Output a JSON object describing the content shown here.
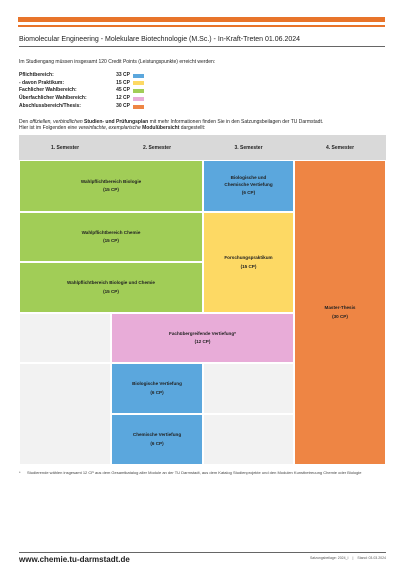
{
  "header": {
    "title": "Biomolecular Engineering - Molekulare Biotechnologie (M.Sc.) - In-Kraft-Treten 01.06.2024"
  },
  "intro": "Im Studiengang müssen insgesamt 120 Credit Points (Leistungspunkte) erreicht werden:",
  "summary": [
    {
      "label": "Pflichtbereich:",
      "value": "33 CP",
      "color": "#5ba7dd"
    },
    {
      "label": "- davon Praktikum:",
      "value": "15 CP",
      "color": "#fdd964"
    },
    {
      "label": "Fachlicher Wahlbereich:",
      "value": "45 CP",
      "color": "#a1cd57"
    },
    {
      "label": "Überfachlicher Wahlbereich:",
      "value": "12 CP",
      "color": "#e8acd8"
    },
    {
      "label": "Abschlussbereich/Thesis:",
      "value": "30 CP",
      "color": "#ee8544"
    }
  ],
  "plan_text": {
    "line1_a": "Den ",
    "line1_b": "offiziellen, verbindlichen",
    "line1_c": " Studien- und Prüfungsplan",
    "line1_d": " mit mehr Informationen finden Sie in den Satzungsbeilagen der TU Darmstadt.",
    "line2_a": "Hier ist im Folgenden eine ",
    "line2_b": "vereinfachte, exemplarische",
    "line2_c": " Modulübersicht",
    "line2_d": " dargestellt:"
  },
  "semesters": [
    "1. Semester",
    "2. Semester",
    "3. Semester",
    "4. Semester"
  ],
  "modules": {
    "wahl_bio": {
      "name": "Wahlpflichtbereich Biologie",
      "cp": "(15 CP)",
      "color": "#a1cd57"
    },
    "wahl_chem": {
      "name": "Wahlpflichtbereich Chemie",
      "cp": "(15 CP)",
      "color": "#a1cd57"
    },
    "wahl_biochem": {
      "name": "Wahlpflichtbereich Biologie und Chemie",
      "cp": "(15 CP)",
      "color": "#a1cd57"
    },
    "bio_chem_vert": {
      "name": "Biologische und Chemische Vertiefung",
      "cp": "(6 CP)",
      "color": "#5ba7dd"
    },
    "forschung": {
      "name": "Forschungspraktikum",
      "cp": "(15 CP)",
      "color": "#fdd964"
    },
    "thesis": {
      "name": "Master-Thesis",
      "cp": "(30 CP)",
      "color": "#ee8544"
    },
    "fachueber": {
      "name": "Fachübergreifende Vertiefung*",
      "cp": "(12 CP)",
      "color": "#e8acd8"
    },
    "bio_vert": {
      "name": "Biologische Vertiefung",
      "cp": "(6 CP)",
      "color": "#5ba7dd"
    },
    "chem_vert": {
      "name": "Chemische Vertiefung",
      "cp": "(6 CP)",
      "color": "#5ba7dd"
    }
  },
  "footnote": {
    "star": "*",
    "text": "Studierende wählen insgesamt 12 CP aus dem Gesamtkatalog aller Module an der TU Darmstadt, aus dem Katalog Studienprojekte und den Modulen Kunstbetreuung Chemie oder Biologie"
  },
  "footer": {
    "website": "www.chemie.tu-darmstadt.de",
    "meta1": "Satzungsbeilage: 2024_I",
    "meta2": "|",
    "meta3": "Stand: 03.03.2024"
  }
}
